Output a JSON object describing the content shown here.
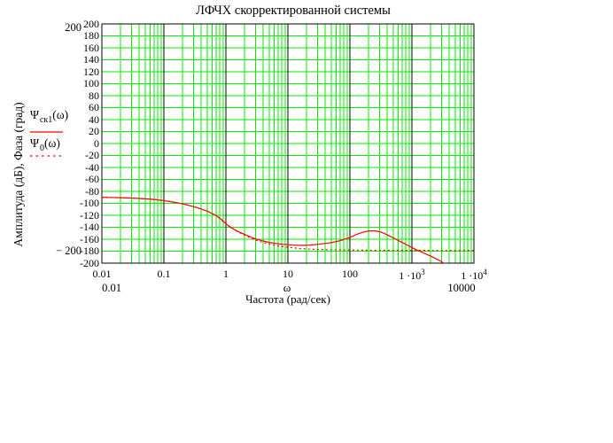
{
  "title": "ЛФЧХ скорректированной системы",
  "legend": {
    "series1": {
      "base": "Ψ",
      "sub": "ск1",
      "args": "(ω)"
    },
    "series2": {
      "base": "Ψ",
      "sub": "0",
      "args": "(ω)"
    }
  },
  "axes": {
    "y_label": "Амплитуда (дБ), Фаза (град)",
    "x_label": "Частота (рад/сек)",
    "x_var": "ω",
    "y_upper_limit": "200",
    "y_lower_limit": "− 200",
    "x_min_limit": "0.01",
    "x_max_limit": "10000"
  },
  "colors": {
    "background": "#ffffff",
    "grid": "#00ee00",
    "decade_line": "#000000",
    "frame": "#000000",
    "curve": "#ff0000",
    "text": "#000000"
  },
  "chart_data": {
    "type": "line",
    "title": "ЛФЧХ скорректированной системы",
    "xlabel": "Частота (рад/сек)",
    "ylabel": "Амплитуда (дБ), Фаза (град)",
    "x_scale": "log",
    "xlim": [
      0.01,
      10000
    ],
    "ylim": [
      -200,
      200
    ],
    "grid": true,
    "legend_position": "left-outside",
    "y_ticks": [
      200,
      180,
      160,
      140,
      120,
      100,
      80,
      60,
      40,
      20,
      0,
      -20,
      -40,
      -60,
      -80,
      -100,
      -120,
      -140,
      -160,
      -180,
      -200
    ],
    "x_ticks": [
      {
        "value": 0.01,
        "base": "0.01",
        "sup": ""
      },
      {
        "value": 0.1,
        "base": "0.1",
        "sup": ""
      },
      {
        "value": 1,
        "base": "1",
        "sup": ""
      },
      {
        "value": 10,
        "base": "10",
        "sup": ""
      },
      {
        "value": 100,
        "base": "100",
        "sup": ""
      },
      {
        "value": 1000,
        "base": "1 ·10",
        "sup": "3"
      },
      {
        "value": 10000,
        "base": "1 ·10",
        "sup": "4"
      }
    ],
    "series": [
      {
        "name": "Ψск1(ω)",
        "style": "solid",
        "color": "#ff0000",
        "points": [
          [
            0.01,
            -90
          ],
          [
            0.015,
            -90.3
          ],
          [
            0.02,
            -90.6
          ],
          [
            0.03,
            -91.2
          ],
          [
            0.05,
            -92.4
          ],
          [
            0.07,
            -93.5
          ],
          [
            0.1,
            -95.5
          ],
          [
            0.15,
            -98.3
          ],
          [
            0.2,
            -100.8
          ],
          [
            0.3,
            -105.4
          ],
          [
            0.4,
            -109.3
          ],
          [
            0.5,
            -113
          ],
          [
            0.7,
            -120.5
          ],
          [
            0.85,
            -127
          ],
          [
            1,
            -134
          ],
          [
            1.2,
            -140.5
          ],
          [
            1.5,
            -146
          ],
          [
            2,
            -152
          ],
          [
            2.5,
            -156.3
          ],
          [
            3,
            -159.4
          ],
          [
            4,
            -163
          ],
          [
            5,
            -165.4
          ],
          [
            7,
            -167.7
          ],
          [
            10,
            -169.2
          ],
          [
            14,
            -170.1
          ],
          [
            18,
            -170.2
          ],
          [
            22,
            -169.8
          ],
          [
            30,
            -168.6
          ],
          [
            40,
            -167.1
          ],
          [
            50,
            -165.7
          ],
          [
            70,
            -162.4
          ],
          [
            100,
            -157
          ],
          [
            130,
            -151.7
          ],
          [
            160,
            -148.4
          ],
          [
            200,
            -146.3
          ],
          [
            250,
            -145.9
          ],
          [
            300,
            -147.4
          ],
          [
            350,
            -149.9
          ],
          [
            400,
            -152.7
          ],
          [
            500,
            -157.7
          ],
          [
            600,
            -161.9
          ],
          [
            700,
            -165.6
          ],
          [
            850,
            -170
          ],
          [
            1000,
            -174
          ],
          [
            1200,
            -177.9
          ],
          [
            1400,
            -181.1
          ],
          [
            1700,
            -184.9
          ],
          [
            2000,
            -188.2
          ],
          [
            2500,
            -193.1
          ],
          [
            3000,
            -197.4
          ],
          [
            3300,
            -200.5
          ]
        ]
      },
      {
        "name": "Ψ0(ω)",
        "style": "dotted",
        "color": "#ff0000",
        "points": [
          [
            0.01,
            -90
          ],
          [
            0.02,
            -90.6
          ],
          [
            0.03,
            -91.2
          ],
          [
            0.05,
            -92.4
          ],
          [
            0.07,
            -93.5
          ],
          [
            0.1,
            -95.5
          ],
          [
            0.15,
            -98.3
          ],
          [
            0.2,
            -100.8
          ],
          [
            0.3,
            -105.4
          ],
          [
            0.5,
            -113
          ],
          [
            0.7,
            -120.5
          ],
          [
            1,
            -134.3
          ],
          [
            1.5,
            -146.5
          ],
          [
            2,
            -153.2
          ],
          [
            3,
            -161.6
          ],
          [
            4,
            -165.6
          ],
          [
            5,
            -168.1
          ],
          [
            7,
            -171.3
          ],
          [
            10,
            -173.3
          ],
          [
            15,
            -175.4
          ],
          [
            20,
            -176.3
          ],
          [
            30,
            -177.1
          ],
          [
            50,
            -177.7
          ],
          [
            70,
            -177.9
          ],
          [
            100,
            -178.1
          ],
          [
            200,
            -178.4
          ],
          [
            500,
            -178.6
          ],
          [
            1000,
            -178.7
          ],
          [
            3000,
            -178.8
          ],
          [
            10000,
            -178.9
          ]
        ]
      }
    ]
  }
}
